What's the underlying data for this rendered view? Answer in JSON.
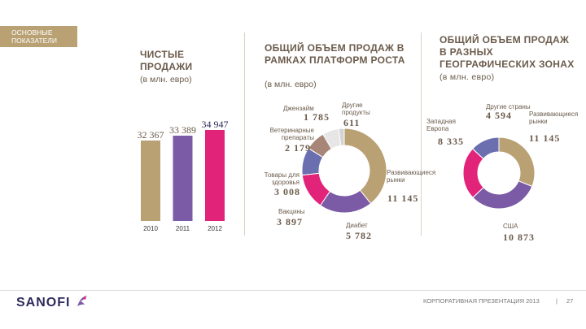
{
  "section_label": "ОСНОВНЫЕ ПОКАЗАТЕЛИ",
  "chart_data": [
    {
      "type": "bar",
      "title": "ЧИСТЫЕ ПРОДАЖИ",
      "subtitle": "(в млн. евро)",
      "categories": [
        "2010",
        "2011",
        "2012"
      ],
      "values": [
        32367,
        33389,
        34947
      ],
      "value_labels": [
        "32 367",
        "33 389",
        "34 947"
      ],
      "colors": [
        "#b9a174",
        "#7b5aa6",
        "#e2237a"
      ]
    },
    {
      "type": "pie",
      "title": "ОБЩИЙ ОБЪЕМ ПРОДАЖ В РАМКАХ ПЛАТФОРМ РОСТА",
      "subtitle": "(в млн. евро)",
      "slices": [
        {
          "label": "Развивающиеся рынки",
          "value": 11145,
          "value_label": "11 145",
          "color": "#b9a174"
        },
        {
          "label": "Диабет",
          "value": 5782,
          "value_label": "5 782",
          "color": "#7b5aa6"
        },
        {
          "label": "Вакцины",
          "value": 3897,
          "value_label": "3 897",
          "color": "#e2237a"
        },
        {
          "label": "Товары для здоровья",
          "value": 3008,
          "value_label": "3 008",
          "color": "#6b6fb0"
        },
        {
          "label": "Ветеринарные препараты",
          "value": 2179,
          "value_label": "2 179",
          "color": "#a88677"
        },
        {
          "label": "Джензайм",
          "value": 1785,
          "value_label": "1 785",
          "color": "#e6e6e6"
        },
        {
          "label": "Другие продукты",
          "value": 611,
          "value_label": "611",
          "color": "#d4d4d4"
        }
      ]
    },
    {
      "type": "pie",
      "title": "ОБЩИЙ ОБЪЕМ ПРОДАЖ В РАЗНЫХ ГЕОГРАФИЧЕСКИХ ЗОНАХ",
      "subtitle": "(в млн. евро)",
      "slices": [
        {
          "label": "США",
          "value": 10873,
          "value_label": "10 873",
          "color": "#b9a174"
        },
        {
          "label": "Развивающиеся рынки",
          "value": 11145,
          "value_label": "11 145",
          "color": "#7b5aa6"
        },
        {
          "label": "Западная Европа",
          "value": 8335,
          "value_label": "8 335",
          "color": "#e2237a"
        },
        {
          "label": "Другие страны",
          "value": 4594,
          "value_label": "4 594",
          "color": "#6b6fb0"
        }
      ]
    }
  ],
  "footer": {
    "logo": "SANOFI",
    "text": "КОРПОРАТИВНАЯ ПРЕЗЕНТАЦИЯ 2013",
    "separator": "|",
    "page": "27"
  }
}
